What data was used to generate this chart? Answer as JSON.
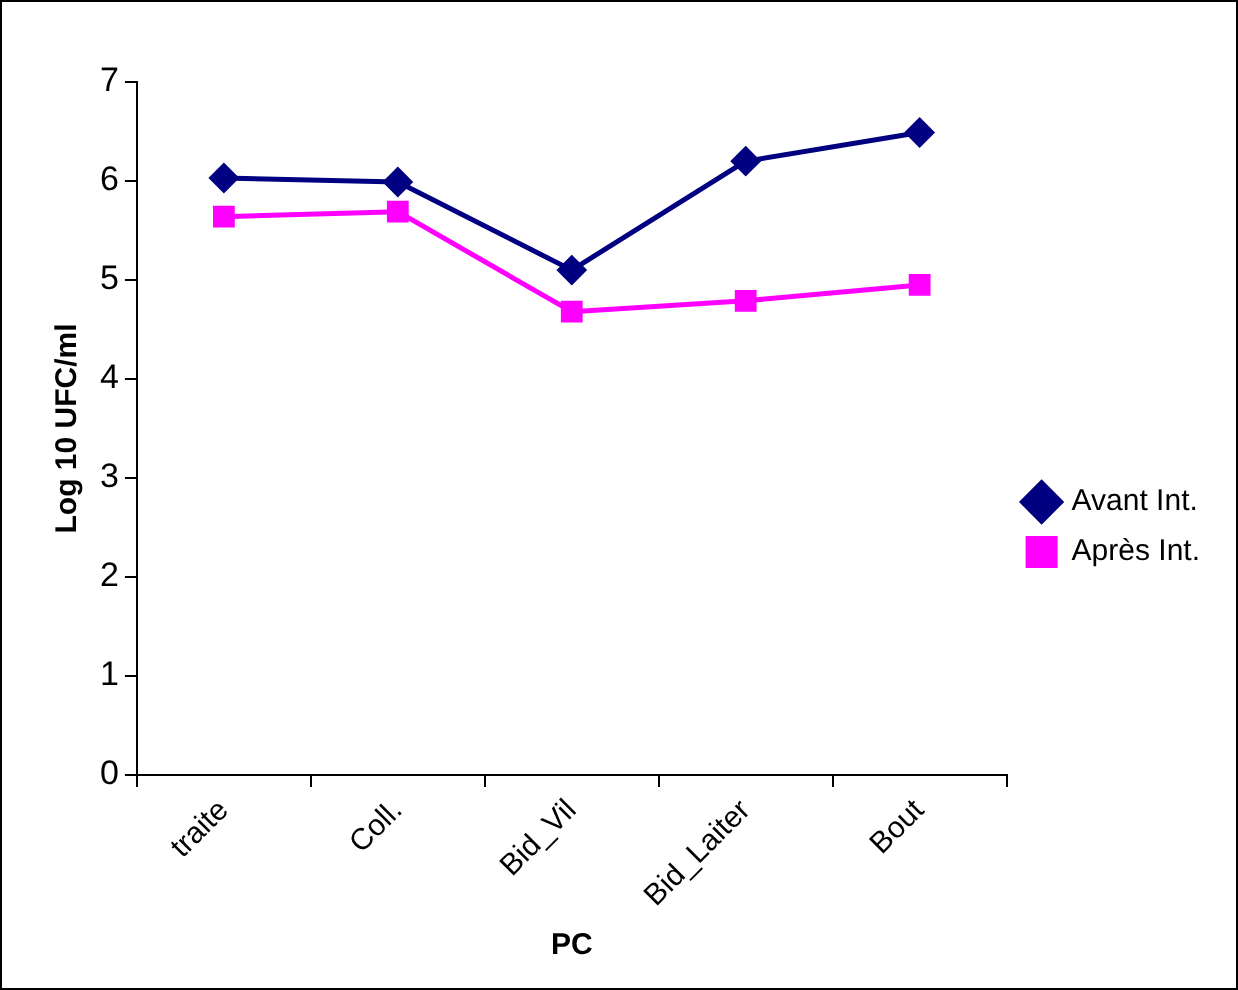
{
  "chart_data": {
    "type": "line",
    "xlabel": "PC",
    "ylabel": "Log 10 UFC/ml",
    "categories": [
      "traite",
      "Coll.",
      "Bid_Vil",
      "Bid_Laiter",
      "Bout"
    ],
    "series": [
      {
        "name": "Avant Int.",
        "color": "#000080",
        "marker": "diamond",
        "values": [
          6.03,
          5.99,
          5.1,
          6.2,
          6.49
        ]
      },
      {
        "name": "Après Int.",
        "color": "#ff00ff",
        "marker": "square",
        "values": [
          5.64,
          5.69,
          4.68,
          4.79,
          4.95
        ]
      }
    ],
    "ylim": [
      0,
      7
    ],
    "yticks": [
      0,
      1,
      2,
      3,
      4,
      5,
      6,
      7
    ],
    "grid": false,
    "legend": "right"
  }
}
